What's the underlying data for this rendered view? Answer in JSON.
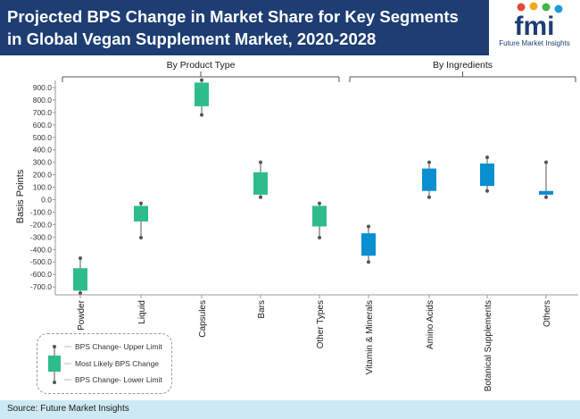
{
  "header": {
    "title": "Projected BPS Change in Market Share for Key Segments in Global Vegan Supplement Market, 2020-2028"
  },
  "logo": {
    "wordmark": "fmi",
    "tagline": "Future Market Insights"
  },
  "footer": {
    "source": "Source: Future Market Insights"
  },
  "legend": {
    "upper": "BPS Change- Upper Limit",
    "likely": "Most Likely BPS Change",
    "lower": "BPS Change- Lower Limit"
  },
  "colors": {
    "header_bg": "#1d3d73",
    "product_box": "#2ebc8c",
    "ingredient_box": "#0a8fd0",
    "whisker": "#555555",
    "footer_bg": "#cde9f4"
  },
  "chart_data": {
    "type": "box",
    "title": "Projected BPS Change in Market Share for Key Segments in Global Vegan Supplement Market, 2020-2028",
    "ylabel": "Basis Points",
    "xlabel": "",
    "ylim": [
      -750,
      950
    ],
    "yticks": [
      "900.0",
      "800.0",
      "700.0",
      "600.0",
      "500.0",
      "400.0",
      "300.0",
      "200.0",
      "100.0",
      "0.0",
      "-100.0",
      "-200.0",
      "-300.0",
      "-400.0",
      "-500.0",
      "-600.0",
      "-700.0"
    ],
    "groups": [
      {
        "name": "By Product Type",
        "start": 0,
        "end": 4
      },
      {
        "name": "By Ingredients",
        "start": 5,
        "end": 8
      }
    ],
    "categories": [
      "Powder",
      "Liquid",
      "Capsules",
      "Bars",
      "Other Types",
      "Vitamin & Minerals",
      "Amino Acids",
      "Botanical Supplements",
      "Others"
    ],
    "series": [
      {
        "name": "Powder",
        "group": "By Product Type",
        "upper": -470,
        "box_high": -550,
        "box_low": -730,
        "lower": -750
      },
      {
        "name": "Liquid",
        "group": "By Product Type",
        "upper": -30,
        "box_high": -50,
        "box_low": -175,
        "lower": -305
      },
      {
        "name": "Capsules",
        "group": "By Product Type",
        "upper": 960,
        "box_high": 940,
        "box_low": 750,
        "lower": 680
      },
      {
        "name": "Bars",
        "group": "By Product Type",
        "upper": 300,
        "box_high": 220,
        "box_low": 40,
        "lower": 20
      },
      {
        "name": "Other Types",
        "group": "By Product Type",
        "upper": -30,
        "box_high": -50,
        "box_low": -215,
        "lower": -305
      },
      {
        "name": "Vitamin & Minerals",
        "group": "By Ingredients",
        "upper": -215,
        "box_high": -270,
        "box_low": -450,
        "lower": -500
      },
      {
        "name": "Amino Acids",
        "group": "By Ingredients",
        "upper": 300,
        "box_high": 250,
        "box_low": 70,
        "lower": 20
      },
      {
        "name": "Botanical Supplements",
        "group": "By Ingredients",
        "upper": 340,
        "box_high": 290,
        "box_low": 110,
        "lower": 70
      },
      {
        "name": "Others",
        "group": "By Ingredients",
        "upper": 300,
        "box_high": 70,
        "box_low": 40,
        "lower": 20
      }
    ]
  }
}
